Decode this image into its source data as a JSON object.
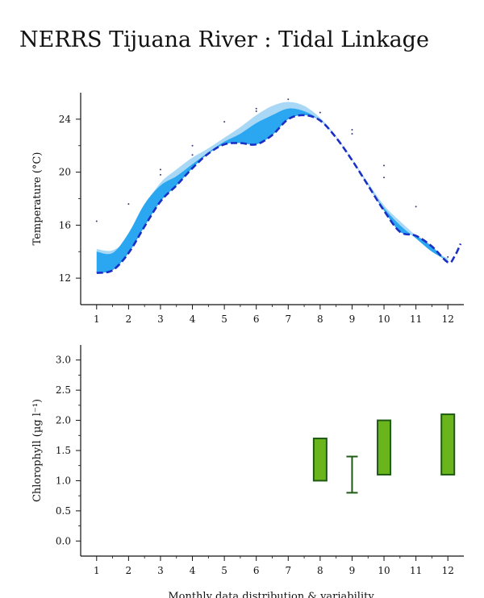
{
  "title": "NERRS Tijuana River : Tidal Linkage",
  "footer_label": "Monthly data distribution & variability",
  "colors": {
    "band_light": "#a8d8f5",
    "band_dark": "#2ba6f0",
    "mean_line": "#1a2fc4",
    "points": "#3a3a7a",
    "box_fill": "#6ab51c",
    "box_stroke": "#1f5a14",
    "axis": "#111111"
  },
  "chart_data": [
    {
      "type": "area",
      "ylabel": "Temperature (°C)",
      "xlabel": "",
      "x_ticks": [
        1,
        2,
        3,
        4,
        5,
        6,
        7,
        8,
        9,
        10,
        11,
        12
      ],
      "y_ticks": [
        12,
        16,
        20,
        24
      ],
      "xlim": [
        0.5,
        12.5
      ],
      "ylim": [
        10,
        26
      ],
      "grid": false,
      "series": [
        {
          "role": "upper_light",
          "x": [
            1,
            1.5,
            2,
            2.5,
            3,
            3.5,
            4,
            4.5,
            5,
            5.5,
            6,
            6.5,
            7,
            7.5,
            8,
            8.5,
            9,
            9.5,
            10,
            10.5,
            11,
            11.5,
            12
          ],
          "values": [
            14.2,
            14.1,
            15.1,
            17.4,
            19.2,
            20.2,
            21.1,
            21.8,
            22.6,
            23.4,
            24.3,
            25.0,
            25.3,
            25.0,
            24.1,
            22.7,
            21.0,
            19.2,
            17.5,
            16.3,
            15.2,
            14.1,
            13.5
          ]
        },
        {
          "role": "upper_dark",
          "x": [
            1,
            1.5,
            2,
            2.5,
            3,
            3.5,
            4,
            4.5,
            5,
            5.5,
            6,
            6.5,
            7,
            7.5,
            8,
            8.5,
            9,
            9.5,
            10,
            10.5,
            11,
            11.5,
            12
          ],
          "values": [
            14.0,
            13.9,
            15.4,
            17.6,
            19.0,
            19.7,
            20.6,
            21.5,
            22.3,
            22.9,
            23.7,
            24.3,
            24.8,
            24.6,
            23.9,
            22.6,
            20.9,
            19.0,
            17.3,
            16.0,
            15.0,
            14.0,
            13.3
          ]
        },
        {
          "role": "mean_line",
          "x": [
            1,
            1.5,
            2,
            2.5,
            3,
            3.5,
            4,
            4.5,
            5,
            5.5,
            6,
            6.5,
            7,
            7.5,
            8,
            8.5,
            9,
            9.5,
            10,
            10.5,
            11,
            11.5,
            12,
            12.2,
            12.4
          ],
          "values": [
            12.4,
            12.6,
            13.9,
            15.9,
            17.8,
            19.0,
            20.3,
            21.4,
            22.1,
            22.2,
            22.1,
            22.8,
            24.0,
            24.3,
            23.9,
            22.6,
            20.9,
            19.0,
            17.1,
            15.5,
            15.2,
            14.4,
            13.2,
            13.6,
            14.6
          ]
        },
        {
          "role": "points",
          "x": [
            1,
            2,
            3,
            3,
            4,
            4,
            5,
            6,
            6,
            7,
            8,
            9,
            9,
            10,
            10,
            11,
            12
          ],
          "values": [
            16.3,
            17.6,
            20.2,
            19.8,
            22.0,
            21.3,
            23.8,
            24.8,
            24.6,
            25.5,
            24.5,
            23.2,
            22.9,
            20.5,
            19.6,
            17.4,
            13.6
          ]
        }
      ]
    },
    {
      "type": "bar",
      "ylabel": "Chlorophyll (µg l⁻¹)",
      "xlabel": "",
      "x_ticks": [
        1,
        2,
        3,
        4,
        5,
        6,
        7,
        8,
        9,
        10,
        11,
        12
      ],
      "y_ticks": [
        0.0,
        0.5,
        1.0,
        1.5,
        2.0,
        2.5,
        3.0
      ],
      "y_tick_labels": [
        "0.0",
        "0.5",
        "1.0",
        "1.5",
        "2.0",
        "2.5",
        "3.0"
      ],
      "xlim": [
        0.5,
        12.5
      ],
      "ylim": [
        -0.25,
        3.25
      ],
      "grid": false,
      "boxes": [
        {
          "x": 8,
          "low": 1.0,
          "high": 1.7
        },
        {
          "x": 10,
          "low": 1.1,
          "high": 2.0
        },
        {
          "x": 12,
          "low": 1.1,
          "high": 2.1
        }
      ],
      "whiskers": [
        {
          "x": 9,
          "low": 0.8,
          "high": 1.4
        }
      ]
    }
  ]
}
